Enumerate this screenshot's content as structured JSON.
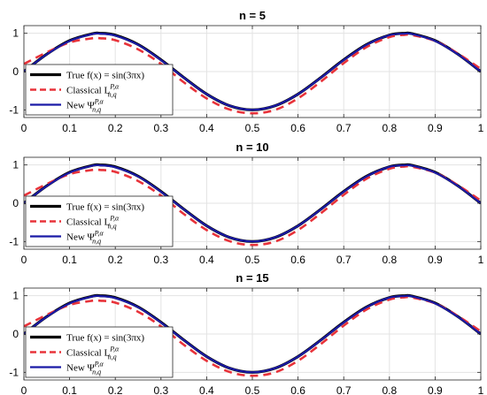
{
  "chart_data": [
    {
      "type": "line",
      "title": "n = 5",
      "xlabel": "",
      "ylabel": "",
      "xlim": [
        0,
        1
      ],
      "ylim": [
        -1.2,
        1.2
      ],
      "xticks": [
        0,
        0.1,
        0.2,
        0.3,
        0.4,
        0.5,
        0.6,
        0.7,
        0.8,
        0.9,
        1
      ],
      "xtick_labels": [
        "0",
        "0.1",
        "0.2",
        "0.3",
        "0.4",
        "0.5",
        "0.6",
        "0.7",
        "0.8",
        "0.9",
        "1"
      ],
      "yticks": [
        -1,
        0,
        1
      ],
      "ytick_labels": [
        "-1",
        "0",
        "1"
      ],
      "grid": true,
      "legend_position": "bottom-left",
      "series": [
        {
          "name": "True f(x) = sin(3πx)",
          "color": "#000000",
          "style": "solid",
          "x": [
            0,
            0.05,
            0.1,
            0.15,
            0.1667,
            0.2,
            0.25,
            0.3,
            0.35,
            0.4,
            0.45,
            0.5,
            0.55,
            0.6,
            0.65,
            0.7,
            0.75,
            0.8,
            0.8333,
            0.85,
            0.9,
            0.95,
            1
          ],
          "y": [
            0,
            0.454,
            0.809,
            0.988,
            1.0,
            0.951,
            0.707,
            0.309,
            -0.156,
            -0.588,
            -0.891,
            -1.0,
            -0.891,
            -0.588,
            -0.156,
            0.309,
            0.707,
            0.951,
            1.0,
            0.988,
            0.809,
            0.454,
            0
          ]
        },
        {
          "name": "Classical L_{n,q}^{P,α}",
          "color": "#e8333a",
          "style": "dashed",
          "x": [
            0,
            0.05,
            0.1,
            0.15,
            0.1667,
            0.2,
            0.25,
            0.3,
            0.35,
            0.4,
            0.45,
            0.5,
            0.55,
            0.6,
            0.65,
            0.7,
            0.75,
            0.8,
            0.8333,
            0.85,
            0.9,
            0.95,
            1
          ],
          "y": [
            0.2,
            0.5,
            0.76,
            0.87,
            0.87,
            0.82,
            0.58,
            0.2,
            -0.28,
            -0.7,
            -0.99,
            -1.09,
            -1.0,
            -0.7,
            -0.26,
            0.22,
            0.64,
            0.9,
            0.96,
            0.95,
            0.8,
            0.47,
            0.07
          ]
        },
        {
          "name": "New Ψ_{n,q}^{P,α}",
          "color": "#1a1aa6",
          "style": "solid",
          "x": [
            0,
            0.05,
            0.1,
            0.15,
            0.1667,
            0.2,
            0.25,
            0.3,
            0.35,
            0.4,
            0.45,
            0.5,
            0.55,
            0.6,
            0.65,
            0.7,
            0.75,
            0.8,
            0.8333,
            0.85,
            0.9,
            0.95,
            1
          ],
          "y": [
            0,
            0.45,
            0.8,
            0.98,
            0.99,
            0.94,
            0.7,
            0.3,
            -0.16,
            -0.59,
            -0.89,
            -1.0,
            -0.89,
            -0.59,
            -0.16,
            0.3,
            0.7,
            0.95,
            0.99,
            0.98,
            0.8,
            0.45,
            0
          ]
        }
      ]
    },
    {
      "type": "line",
      "title": "n = 10",
      "xlabel": "",
      "ylabel": "",
      "xlim": [
        0,
        1
      ],
      "ylim": [
        -1.2,
        1.2
      ],
      "xticks": [
        0,
        0.1,
        0.2,
        0.3,
        0.4,
        0.5,
        0.6,
        0.7,
        0.8,
        0.9,
        1
      ],
      "xtick_labels": [
        "0",
        "0.1",
        "0.2",
        "0.3",
        "0.4",
        "0.5",
        "0.6",
        "0.7",
        "0.8",
        "0.9",
        "1"
      ],
      "yticks": [
        -1,
        0,
        1
      ],
      "ytick_labels": [
        "-1",
        "0",
        "1"
      ],
      "grid": true,
      "legend_position": "bottom-left",
      "series": [
        {
          "name": "True f(x) = sin(3πx)",
          "color": "#000000",
          "style": "solid",
          "x": [
            0,
            0.05,
            0.1,
            0.15,
            0.1667,
            0.2,
            0.25,
            0.3,
            0.35,
            0.4,
            0.45,
            0.5,
            0.55,
            0.6,
            0.65,
            0.7,
            0.75,
            0.8,
            0.8333,
            0.85,
            0.9,
            0.95,
            1
          ],
          "y": [
            0,
            0.454,
            0.809,
            0.988,
            1.0,
            0.951,
            0.707,
            0.309,
            -0.156,
            -0.588,
            -0.891,
            -1.0,
            -0.891,
            -0.588,
            -0.156,
            0.309,
            0.707,
            0.951,
            1.0,
            0.988,
            0.809,
            0.454,
            0
          ]
        },
        {
          "name": "Classical L_{n,q}^{P,α}",
          "color": "#e8333a",
          "style": "dashed",
          "x": [
            0,
            0.05,
            0.1,
            0.15,
            0.1667,
            0.2,
            0.25,
            0.3,
            0.35,
            0.4,
            0.45,
            0.5,
            0.55,
            0.6,
            0.65,
            0.7,
            0.75,
            0.8,
            0.8333,
            0.85,
            0.9,
            0.95,
            1
          ],
          "y": [
            0.2,
            0.5,
            0.76,
            0.87,
            0.87,
            0.82,
            0.58,
            0.2,
            -0.28,
            -0.7,
            -0.99,
            -1.09,
            -1.0,
            -0.7,
            -0.26,
            0.22,
            0.64,
            0.9,
            0.96,
            0.95,
            0.8,
            0.47,
            0.07
          ]
        },
        {
          "name": "New Ψ_{n,q}^{P,α}",
          "color": "#1a1aa6",
          "style": "solid",
          "x": [
            0,
            0.05,
            0.1,
            0.15,
            0.1667,
            0.2,
            0.25,
            0.3,
            0.35,
            0.4,
            0.45,
            0.5,
            0.55,
            0.6,
            0.65,
            0.7,
            0.75,
            0.8,
            0.8333,
            0.85,
            0.9,
            0.95,
            1
          ],
          "y": [
            0,
            0.45,
            0.8,
            0.98,
            0.99,
            0.94,
            0.7,
            0.3,
            -0.16,
            -0.59,
            -0.89,
            -1.0,
            -0.89,
            -0.59,
            -0.16,
            0.3,
            0.7,
            0.95,
            0.99,
            0.98,
            0.8,
            0.45,
            0
          ]
        }
      ]
    },
    {
      "type": "line",
      "title": "n = 15",
      "xlabel": "",
      "ylabel": "",
      "xlim": [
        0,
        1
      ],
      "ylim": [
        -1.2,
        1.2
      ],
      "xticks": [
        0,
        0.1,
        0.2,
        0.3,
        0.4,
        0.5,
        0.6,
        0.7,
        0.8,
        0.9,
        1
      ],
      "xtick_labels": [
        "0",
        "0.1",
        "0.2",
        "0.3",
        "0.4",
        "0.5",
        "0.6",
        "0.7",
        "0.8",
        "0.9",
        "1"
      ],
      "yticks": [
        -1,
        0,
        1
      ],
      "ytick_labels": [
        "-1",
        "0",
        "1"
      ],
      "grid": true,
      "legend_position": "bottom-left",
      "series": [
        {
          "name": "True f(x) = sin(3πx)",
          "color": "#000000",
          "style": "solid",
          "x": [
            0,
            0.05,
            0.1,
            0.15,
            0.1667,
            0.2,
            0.25,
            0.3,
            0.35,
            0.4,
            0.45,
            0.5,
            0.55,
            0.6,
            0.65,
            0.7,
            0.75,
            0.8,
            0.8333,
            0.85,
            0.9,
            0.95,
            1
          ],
          "y": [
            0,
            0.454,
            0.809,
            0.988,
            1.0,
            0.951,
            0.707,
            0.309,
            -0.156,
            -0.588,
            -0.891,
            -1.0,
            -0.891,
            -0.588,
            -0.156,
            0.309,
            0.707,
            0.951,
            1.0,
            0.988,
            0.809,
            0.454,
            0
          ]
        },
        {
          "name": "Classical L_{n,q}^{P,α}",
          "color": "#e8333a",
          "style": "dashed",
          "x": [
            0,
            0.05,
            0.1,
            0.15,
            0.1667,
            0.2,
            0.25,
            0.3,
            0.35,
            0.4,
            0.45,
            0.5,
            0.55,
            0.6,
            0.65,
            0.7,
            0.75,
            0.8,
            0.8333,
            0.85,
            0.9,
            0.95,
            1
          ],
          "y": [
            0.2,
            0.5,
            0.76,
            0.87,
            0.87,
            0.82,
            0.58,
            0.2,
            -0.28,
            -0.7,
            -0.99,
            -1.09,
            -1.0,
            -0.7,
            -0.26,
            0.22,
            0.64,
            0.9,
            0.96,
            0.95,
            0.8,
            0.47,
            0.07
          ]
        },
        {
          "name": "New Ψ_{n,q}^{P,α}",
          "color": "#1a1aa6",
          "style": "solid",
          "x": [
            0,
            0.05,
            0.1,
            0.15,
            0.1667,
            0.2,
            0.25,
            0.3,
            0.35,
            0.4,
            0.45,
            0.5,
            0.55,
            0.6,
            0.65,
            0.7,
            0.75,
            0.8,
            0.8333,
            0.85,
            0.9,
            0.95,
            1
          ],
          "y": [
            0,
            0.45,
            0.8,
            0.98,
            0.99,
            0.94,
            0.7,
            0.3,
            -0.16,
            -0.59,
            -0.89,
            -1.0,
            -0.89,
            -0.59,
            -0.16,
            0.3,
            0.7,
            0.95,
            0.99,
            0.98,
            0.8,
            0.45,
            0
          ]
        }
      ]
    }
  ]
}
